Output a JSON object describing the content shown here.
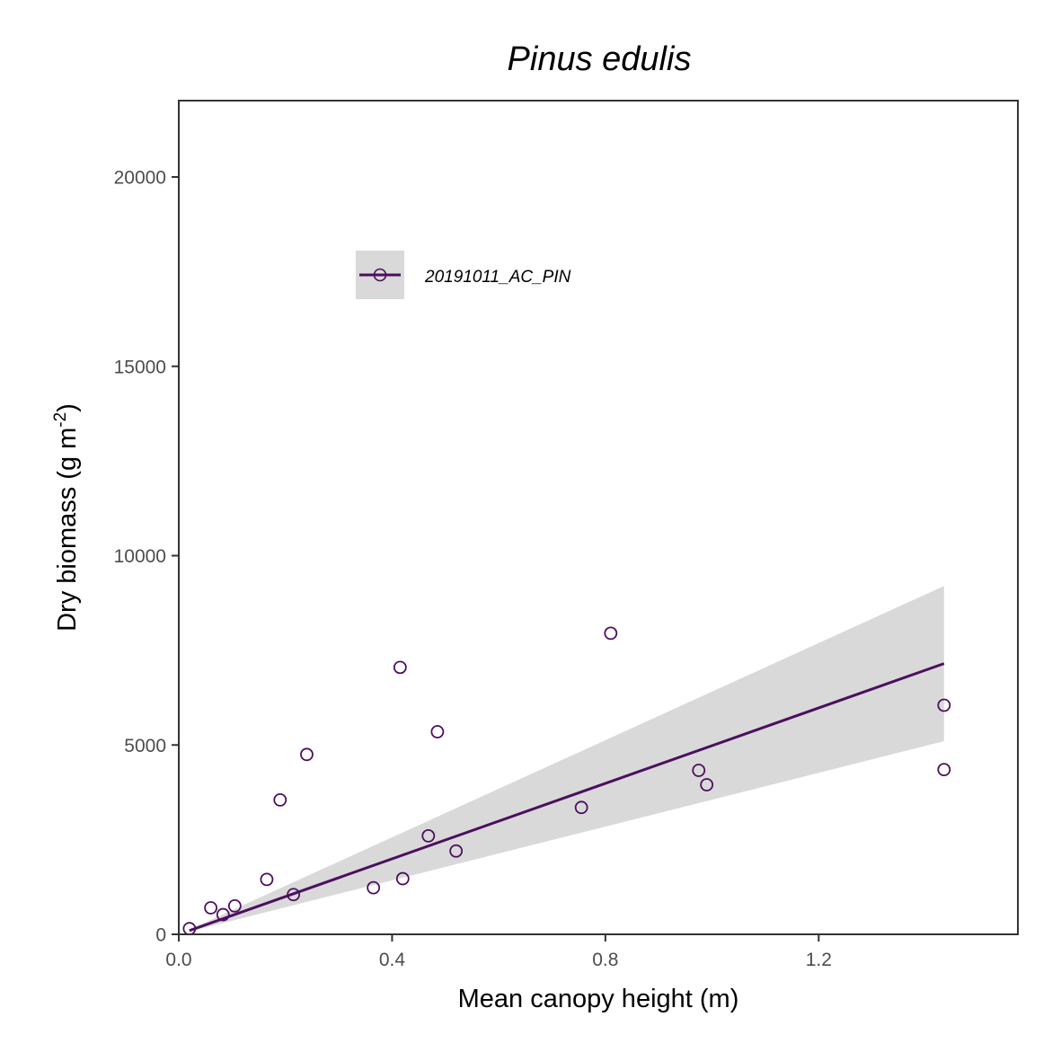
{
  "chart_data": {
    "type": "scatter",
    "title": "Pinus edulis",
    "xlabel": "Mean canopy height (m)",
    "ylabel": {
      "main": "Dry biomass (g m",
      "superscript": "-2",
      "end": ")"
    },
    "xlim": [
      0.0,
      1.58
    ],
    "ylim": [
      0,
      22000
    ],
    "x_ticks": [
      0.0,
      0.4,
      0.8,
      1.2
    ],
    "x_tick_labels": [
      "0.0",
      "0.4",
      "0.8",
      "1.2"
    ],
    "y_ticks": [
      0,
      5000,
      10000,
      15000,
      20000
    ],
    "y_tick_labels": [
      "0",
      "5000",
      "10000",
      "15000",
      "20000"
    ],
    "grid": false,
    "legend_position": "upper-left inside",
    "series": [
      {
        "name": "20191011_AC_PIN",
        "color": "#4b0f5e",
        "points": [
          {
            "x": 0.02,
            "y": 150
          },
          {
            "x": 0.06,
            "y": 700
          },
          {
            "x": 0.083,
            "y": 520
          },
          {
            "x": 0.105,
            "y": 750
          },
          {
            "x": 0.165,
            "y": 1450
          },
          {
            "x": 0.19,
            "y": 3550
          },
          {
            "x": 0.215,
            "y": 1050
          },
          {
            "x": 0.24,
            "y": 4750
          },
          {
            "x": 0.365,
            "y": 1230
          },
          {
            "x": 0.415,
            "y": 7050
          },
          {
            "x": 0.42,
            "y": 1470
          },
          {
            "x": 0.468,
            "y": 2600
          },
          {
            "x": 0.485,
            "y": 5350
          },
          {
            "x": 0.52,
            "y": 2200
          },
          {
            "x": 0.755,
            "y": 3350
          },
          {
            "x": 0.81,
            "y": 7950
          },
          {
            "x": 0.975,
            "y": 4330
          },
          {
            "x": 0.99,
            "y": 3950
          },
          {
            "x": 1.435,
            "y": 6050
          },
          {
            "x": 1.435,
            "y": 4350
          }
        ],
        "fit": {
          "x": [
            0.02,
            1.435
          ],
          "y": [
            100,
            7150
          ]
        },
        "confidence_band": {
          "x": [
            0.02,
            1.435
          ],
          "lower": [
            75,
            5100
          ],
          "upper": [
            125,
            9200
          ]
        }
      }
    ]
  }
}
